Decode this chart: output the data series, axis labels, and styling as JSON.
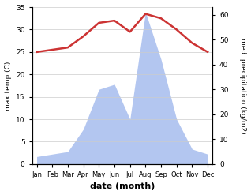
{
  "months": [
    "Jan",
    "Feb",
    "Mar",
    "Apr",
    "May",
    "Jun",
    "Jul",
    "Aug",
    "Sep",
    "Oct",
    "Nov",
    "Dec"
  ],
  "temperature": [
    25.0,
    25.5,
    26.0,
    28.5,
    31.5,
    32.0,
    29.5,
    33.5,
    32.5,
    30.0,
    27.0,
    25.0
  ],
  "precipitation": [
    3,
    4,
    5,
    14,
    30,
    32,
    18,
    61,
    42,
    18,
    6,
    4
  ],
  "temp_color": "#cc3333",
  "precip_color": "#b3c6f0",
  "left_ylabel": "max temp (C)",
  "right_ylabel": "med. precipitation (kg/m2)",
  "xlabel": "date (month)",
  "ylim_left": [
    0,
    35
  ],
  "ylim_right": [
    0,
    63
  ],
  "left_yticks": [
    0,
    5,
    10,
    15,
    20,
    25,
    30,
    35
  ],
  "right_yticks": [
    0,
    10,
    20,
    30,
    40,
    50,
    60
  ],
  "bg_color": "#ffffff",
  "temp_linewidth": 1.8
}
